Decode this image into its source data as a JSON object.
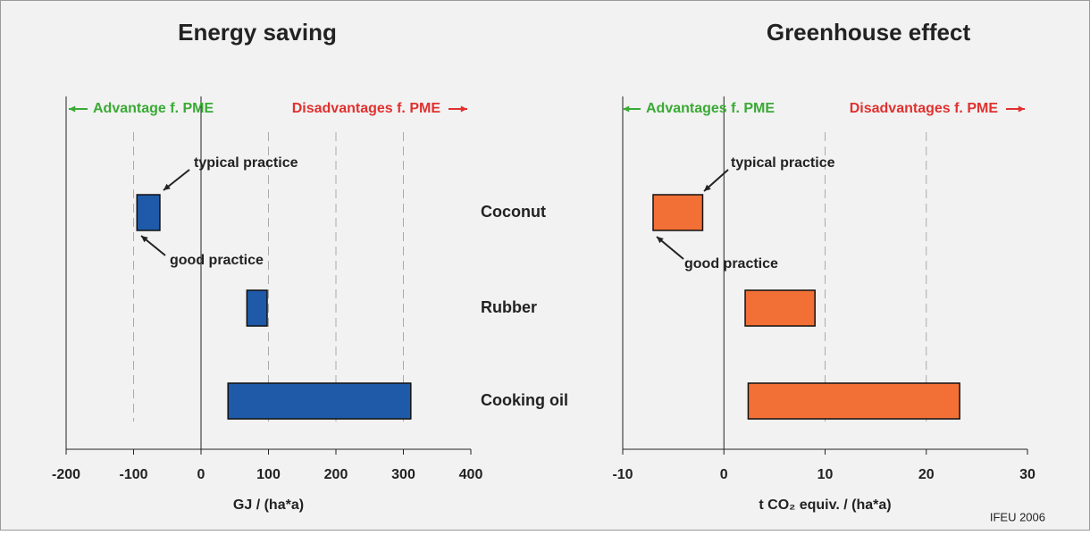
{
  "chart_data": [
    {
      "type": "floating-bar",
      "title": "Energy saving",
      "x_label": "GJ / (ha*a)",
      "categories": [
        "Coconut",
        "Rubber",
        "Cooking oil"
      ],
      "low": [
        -95,
        68,
        40
      ],
      "high": [
        -61,
        98,
        311
      ],
      "color": "#1f5aa8",
      "xlim": [
        -200,
        400
      ],
      "xticks": [
        -200,
        -100,
        0,
        100,
        200,
        300,
        400
      ],
      "grid": true,
      "annotations": [
        {
          "text": "Advantage f. PME",
          "color": "#3aaa35"
        },
        {
          "text": "Disadvantages f. PME",
          "color": "#e0312f"
        },
        {
          "text": "typical practice",
          "color": "#222222"
        },
        {
          "text": "good practice",
          "color": "#222222"
        }
      ]
    },
    {
      "type": "floating-bar",
      "title": "Greenhouse effect",
      "x_label": "t CO₂ equiv. / (ha*a)",
      "low": [
        -7.0,
        2.1,
        2.4
      ],
      "high": [
        -2.1,
        9.0,
        23.3
      ],
      "color": "#f26f36",
      "xlim": [
        -10,
        30
      ],
      "xticks": [
        -10,
        0,
        10,
        20,
        30
      ],
      "grid": true,
      "annotations": [
        {
          "text": "Advantages f.  PME",
          "color": "#3aaa35"
        },
        {
          "text": "Disadvantages f. PME",
          "color": "#e0312f"
        },
        {
          "text": "typical practice",
          "color": "#222222"
        },
        {
          "text": "good practice",
          "color": "#222222"
        }
      ]
    }
  ],
  "source": "IFEU 2006"
}
